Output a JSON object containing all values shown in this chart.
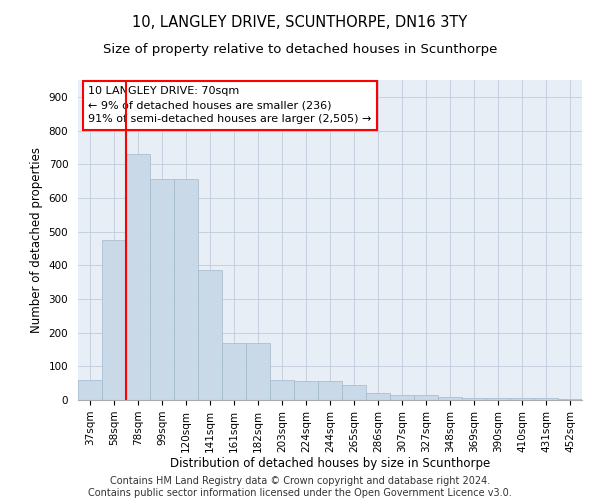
{
  "title": "10, LANGLEY DRIVE, SCUNTHORPE, DN16 3TY",
  "subtitle": "Size of property relative to detached houses in Scunthorpe",
  "xlabel": "Distribution of detached houses by size in Scunthorpe",
  "ylabel": "Number of detached properties",
  "categories": [
    "37sqm",
    "58sqm",
    "78sqm",
    "99sqm",
    "120sqm",
    "141sqm",
    "161sqm",
    "182sqm",
    "203sqm",
    "224sqm",
    "244sqm",
    "265sqm",
    "286sqm",
    "307sqm",
    "327sqm",
    "348sqm",
    "369sqm",
    "390sqm",
    "410sqm",
    "431sqm",
    "452sqm"
  ],
  "values": [
    60,
    475,
    730,
    655,
    655,
    385,
    170,
    170,
    60,
    55,
    55,
    45,
    20,
    15,
    15,
    8,
    5,
    5,
    5,
    5,
    3
  ],
  "bar_color": "#c9d9e8",
  "bar_edgecolor": "#a0b8cc",
  "grid_color": "#c0ccdd",
  "background_color": "#e8eef5",
  "vline_x": 1.5,
  "vline_color": "red",
  "annotation_text": "10 LANGLEY DRIVE: 70sqm\n← 9% of detached houses are smaller (236)\n91% of semi-detached houses are larger (2,505) →",
  "annotation_box_color": "white",
  "annotation_box_edgecolor": "red",
  "footer_text": "Contains HM Land Registry data © Crown copyright and database right 2024.\nContains public sector information licensed under the Open Government Licence v3.0.",
  "ylim": [
    0,
    950
  ],
  "yticks": [
    0,
    100,
    200,
    300,
    400,
    500,
    600,
    700,
    800,
    900
  ],
  "title_fontsize": 10.5,
  "subtitle_fontsize": 9.5,
  "xlabel_fontsize": 8.5,
  "ylabel_fontsize": 8.5,
  "tick_fontsize": 7.5,
  "annotation_fontsize": 8,
  "footer_fontsize": 7
}
